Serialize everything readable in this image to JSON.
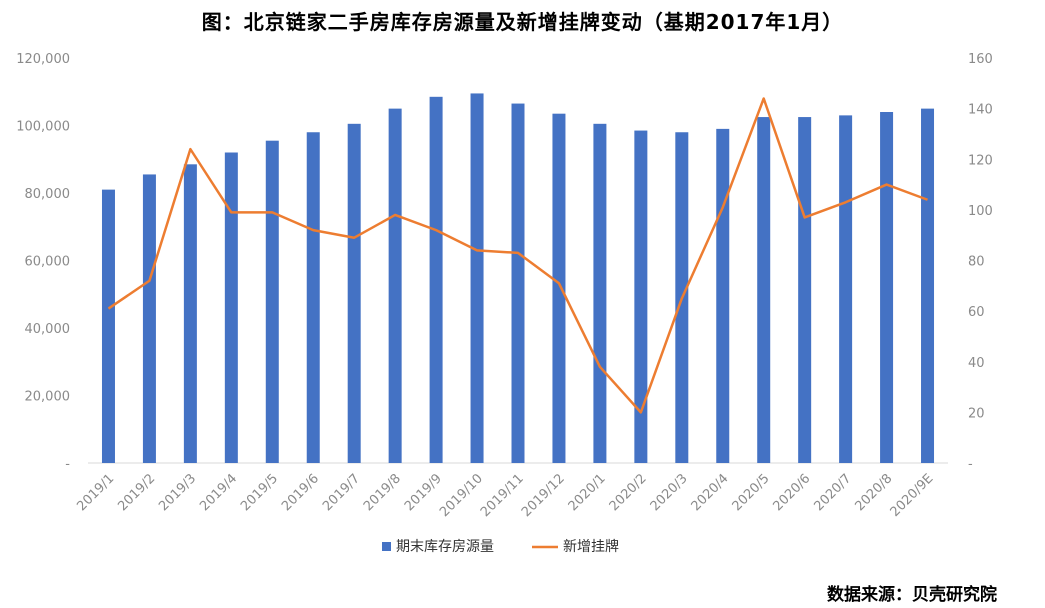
{
  "title": "图：北京链家二手房库存房源量及新增挂牌变动（基期2017年1月）",
  "source": "数据来源：贝壳研究院",
  "chart_data": {
    "type": "bar+line",
    "categories": [
      "2019/1",
      "2019/2",
      "2019/3",
      "2019/4",
      "2019/5",
      "2019/6",
      "2019/7",
      "2019/8",
      "2019/9",
      "2019/10",
      "2019/11",
      "2019/12",
      "2020/1",
      "2020/2",
      "2020/3",
      "2020/4",
      "2020/5",
      "2020/6",
      "2020/7",
      "2020/8",
      "2020/9E"
    ],
    "series": [
      {
        "name": "期末库存房源量",
        "type": "bar",
        "axis": "left",
        "color": "#4472C4",
        "values": [
          81000,
          85500,
          88500,
          92000,
          95500,
          98000,
          100500,
          105000,
          108500,
          109500,
          106500,
          103500,
          100500,
          98500,
          98000,
          99000,
          102500,
          102500,
          103000,
          104000,
          105000
        ]
      },
      {
        "name": "新增挂牌",
        "type": "line",
        "axis": "right",
        "color": "#ED7D31",
        "values": [
          61,
          72,
          124,
          99,
          99,
          92,
          89,
          98,
          92,
          84,
          83,
          71,
          38,
          20,
          65,
          101,
          144,
          97,
          103,
          110,
          104
        ]
      }
    ],
    "y_left": {
      "min": 0,
      "max": 120000,
      "ticks": [
        "-",
        "20,000",
        "40,000",
        "60,000",
        "80,000",
        "100,000",
        "120,000"
      ]
    },
    "y_right": {
      "min": 0,
      "max": 160,
      "ticks": [
        "-",
        "20",
        "40",
        "60",
        "80",
        "100",
        "120",
        "140",
        "160"
      ]
    },
    "grid": false,
    "legend": "bottom-center"
  }
}
